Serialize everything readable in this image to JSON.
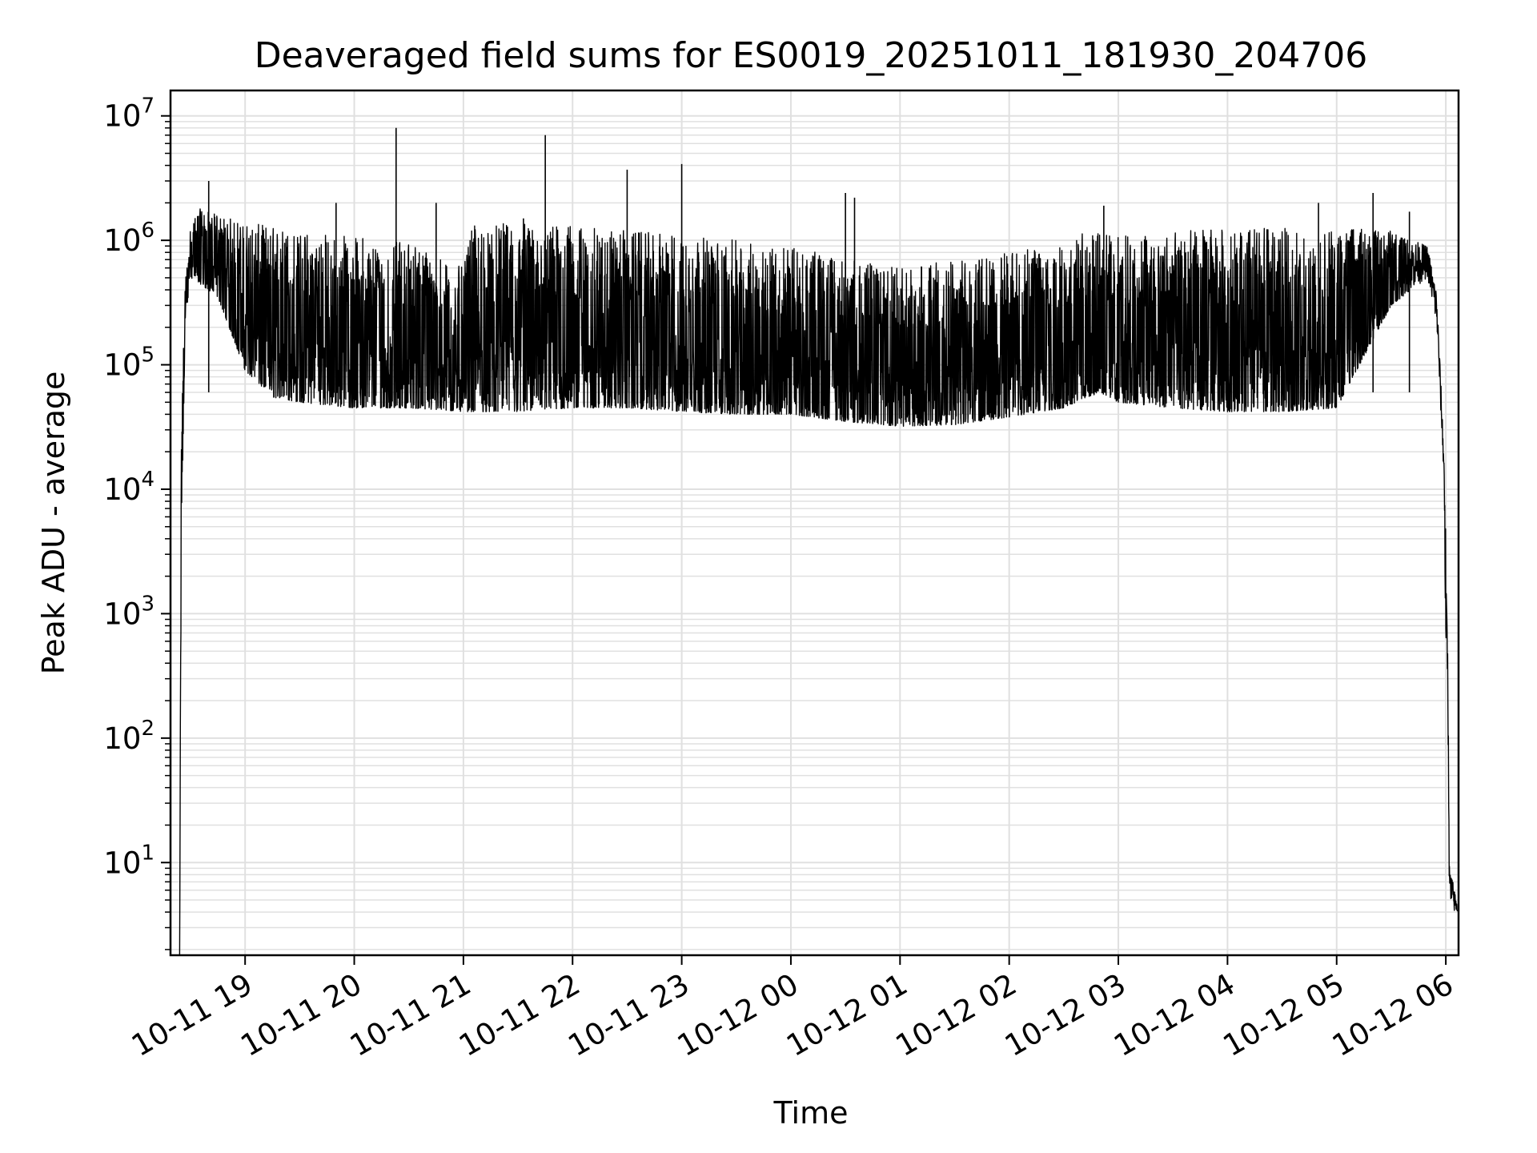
{
  "chart_data": {
    "type": "line",
    "title": "Deaveraged field sums for ES0019_20251011_181930_204706",
    "xlabel": "Time",
    "ylabel": "Peak ADU - average",
    "y_scale": "log",
    "ylim": [
      1.8,
      16000000
    ],
    "xlim": [
      "2025-10-11 18:19",
      "2025-10-12 06:07"
    ],
    "grid": true,
    "grid_minor": true,
    "line_color": "#000000",
    "grid_color": "#e0e0e0",
    "x_ticks": [
      {
        "label": "10-11 19",
        "time": "2025-10-11 19:00"
      },
      {
        "label": "10-11 20",
        "time": "2025-10-11 20:00"
      },
      {
        "label": "10-11 21",
        "time": "2025-10-11 21:00"
      },
      {
        "label": "10-11 22",
        "time": "2025-10-11 22:00"
      },
      {
        "label": "10-11 23",
        "time": "2025-10-11 23:00"
      },
      {
        "label": "10-12 00",
        "time": "2025-10-12 00:00"
      },
      {
        "label": "10-12 01",
        "time": "2025-10-12 01:00"
      },
      {
        "label": "10-12 02",
        "time": "2025-10-12 02:00"
      },
      {
        "label": "10-12 03",
        "time": "2025-10-12 03:00"
      },
      {
        "label": "10-12 04",
        "time": "2025-10-12 04:00"
      },
      {
        "label": "10-12 05",
        "time": "2025-10-12 05:00"
      },
      {
        "label": "10-12 06",
        "time": "2025-10-12 06:00"
      }
    ],
    "y_ticks": [
      {
        "base": "10",
        "exp": "1",
        "value": 10
      },
      {
        "base": "10",
        "exp": "2",
        "value": 100
      },
      {
        "base": "10",
        "exp": "3",
        "value": 1000
      },
      {
        "base": "10",
        "exp": "4",
        "value": 10000
      },
      {
        "base": "10",
        "exp": "5",
        "value": 100000
      },
      {
        "base": "10",
        "exp": "6",
        "value": 1000000
      },
      {
        "base": "10",
        "exp": "7",
        "value": 10000000
      }
    ],
    "series": [
      {
        "envelope": [
          {
            "t": "2025-10-11 18:24",
            "low": 1.8,
            "high": 1.8
          },
          {
            "t": "2025-10-11 18:25",
            "low": 3900,
            "high": 38000
          },
          {
            "t": "2025-10-11 18:27",
            "low": 180000,
            "high": 500000
          },
          {
            "t": "2025-10-11 18:30",
            "low": 500000,
            "high": 1300000
          },
          {
            "t": "2025-10-11 18:35",
            "low": 450000,
            "high": 1800000
          },
          {
            "t": "2025-10-11 18:45",
            "low": 350000,
            "high": 1600000
          },
          {
            "t": "2025-10-11 19:00",
            "low": 90000,
            "high": 1400000
          },
          {
            "t": "2025-10-11 19:15",
            "low": 55000,
            "high": 1300000
          },
          {
            "t": "2025-10-11 19:30",
            "low": 50000,
            "high": 1200000
          },
          {
            "t": "2025-10-11 20:00",
            "low": 45000,
            "high": 1100000
          },
          {
            "t": "2025-10-11 20:30",
            "low": 45000,
            "high": 1000000
          },
          {
            "t": "2025-10-11 21:00",
            "low": 42000,
            "high": 600000
          },
          {
            "t": "2025-10-11 21:05",
            "low": 42000,
            "high": 1300000
          },
          {
            "t": "2025-10-11 21:30",
            "low": 42000,
            "high": 1400000
          },
          {
            "t": "2025-10-11 22:00",
            "low": 45000,
            "high": 1300000
          },
          {
            "t": "2025-10-11 22:30",
            "low": 45000,
            "high": 1200000
          },
          {
            "t": "2025-10-11 23:00",
            "low": 42000,
            "high": 1100000
          },
          {
            "t": "2025-10-11 23:30",
            "low": 40000,
            "high": 1000000
          },
          {
            "t": "2025-10-12 00:00",
            "low": 40000,
            "high": 900000
          },
          {
            "t": "2025-10-12 00:30",
            "low": 35000,
            "high": 700000
          },
          {
            "t": "2025-10-12 01:00",
            "low": 32000,
            "high": 600000
          },
          {
            "t": "2025-10-12 01:30",
            "low": 33000,
            "high": 700000
          },
          {
            "t": "2025-10-12 02:00",
            "low": 38000,
            "high": 800000
          },
          {
            "t": "2025-10-12 02:30",
            "low": 45000,
            "high": 1000000
          },
          {
            "t": "2025-10-12 02:50",
            "low": 60000,
            "high": 1300000
          },
          {
            "t": "2025-10-12 03:00",
            "low": 50000,
            "high": 1100000
          },
          {
            "t": "2025-10-12 03:30",
            "low": 45000,
            "high": 1200000
          },
          {
            "t": "2025-10-12 04:00",
            "low": 42000,
            "high": 1250000
          },
          {
            "t": "2025-10-12 04:30",
            "low": 42000,
            "high": 1250000
          },
          {
            "t": "2025-10-12 05:00",
            "low": 45000,
            "high": 1250000
          },
          {
            "t": "2025-10-12 05:30",
            "low": 300000,
            "high": 1200000
          },
          {
            "t": "2025-10-12 05:50",
            "low": 500000,
            "high": 900000
          },
          {
            "t": "2025-10-12 05:55",
            "low": 200000,
            "high": 400000
          },
          {
            "t": "2025-10-12 05:59",
            "low": 12000,
            "high": 20000
          },
          {
            "t": "2025-10-12 06:00",
            "low": 550,
            "high": 4000
          },
          {
            "t": "2025-10-12 06:01",
            "low": 300,
            "high": 700
          },
          {
            "t": "2025-10-12 06:02",
            "low": 4,
            "high": 10
          },
          {
            "t": "2025-10-12 06:07",
            "low": 4,
            "high": 4
          }
        ],
        "spikes": [
          {
            "t": "2025-10-11 18:40",
            "value": 3000000
          },
          {
            "t": "2025-10-11 19:50",
            "value": 2000000
          },
          {
            "t": "2025-10-11 20:23",
            "value": 8000000
          },
          {
            "t": "2025-10-11 20:45",
            "value": 2000000
          },
          {
            "t": "2025-10-11 21:33",
            "value": 1500000
          },
          {
            "t": "2025-10-11 21:45",
            "value": 7000000
          },
          {
            "t": "2025-10-11 22:30",
            "value": 3700000
          },
          {
            "t": "2025-10-11 23:00",
            "value": 4100000
          },
          {
            "t": "2025-10-12 00:30",
            "value": 2400000
          },
          {
            "t": "2025-10-12 00:35",
            "value": 2200000
          },
          {
            "t": "2025-10-12 02:52",
            "value": 1900000
          },
          {
            "t": "2025-10-12 04:50",
            "value": 2000000
          },
          {
            "t": "2025-10-12 05:20",
            "value": 2400000
          },
          {
            "t": "2025-10-12 05:40",
            "value": 1700000
          }
        ]
      }
    ]
  }
}
